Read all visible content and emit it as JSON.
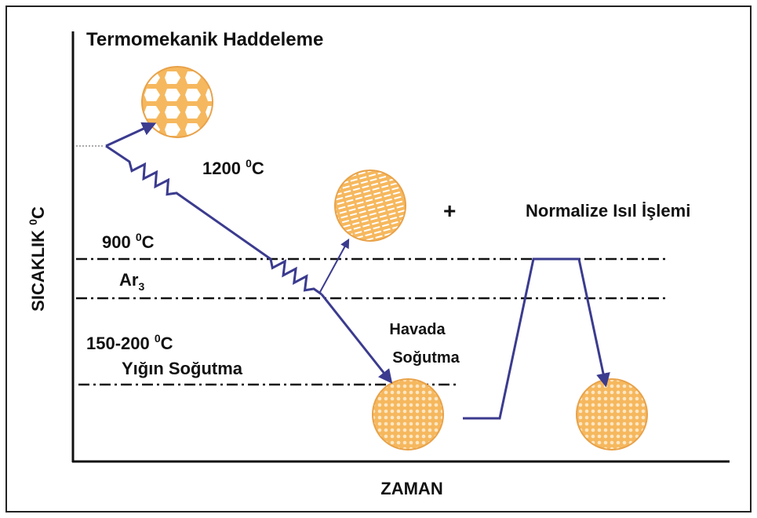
{
  "title": "Termomekanik Haddeleme",
  "y_axis_label": {
    "text": "SICAKLIK ",
    "superscript": "0",
    "unit": "C"
  },
  "x_axis_label": "ZAMAN",
  "temp_1200": {
    "number": "1200 ",
    "superscript": "0",
    "unit": "C"
  },
  "temp_900": {
    "number": "900 ",
    "superscript": "0",
    "unit": "C"
  },
  "ar3": {
    "base": "Ar",
    "subscript": "3"
  },
  "temp_150_200": {
    "number": "150-200 ",
    "superscript": "0",
    "unit": "C"
  },
  "pile_cooling": "Yığın Soğutma",
  "air_cooling": [
    "Havada",
    "Soğutma"
  ],
  "plus": "+",
  "normalize": "Normalize Isıl İşlemi"
}
